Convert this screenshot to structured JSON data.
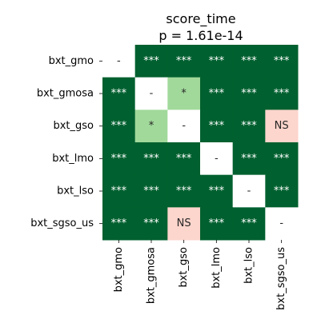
{
  "chart_data": {
    "type": "heatmap",
    "title": "score_time",
    "subtitle": "p = 1.61e-14",
    "rows": [
      "bxt_gmo",
      "bxt_gmosa",
      "bxt_gso",
      "bxt_lmo",
      "bxt_lso",
      "bxt_sgso_us"
    ],
    "columns": [
      "bxt_gmo",
      "bxt_gmosa",
      "bxt_gso",
      "bxt_lmo",
      "bxt_lso",
      "bxt_sgso_us"
    ],
    "cells": [
      [
        "-",
        "***",
        "***",
        "***",
        "***",
        "***"
      ],
      [
        "***",
        "-",
        "*",
        "***",
        "***",
        "***"
      ],
      [
        "***",
        "*",
        "-",
        "***",
        "***",
        "NS"
      ],
      [
        "***",
        "***",
        "***",
        "-",
        "***",
        "***"
      ],
      [
        "***",
        "***",
        "***",
        "***",
        "-",
        "***"
      ],
      [
        "***",
        "***",
        "NS",
        "***",
        "***",
        "-"
      ]
    ],
    "colors": {
      "***": "#00602f",
      "*": "#a1d99b",
      "NS": "#fcd5cc",
      "-": "#ffffff"
    },
    "text_colors": {
      "***": "#ffffff",
      "*": "#262626",
      "NS": "#262626",
      "-": "#262626"
    }
  }
}
